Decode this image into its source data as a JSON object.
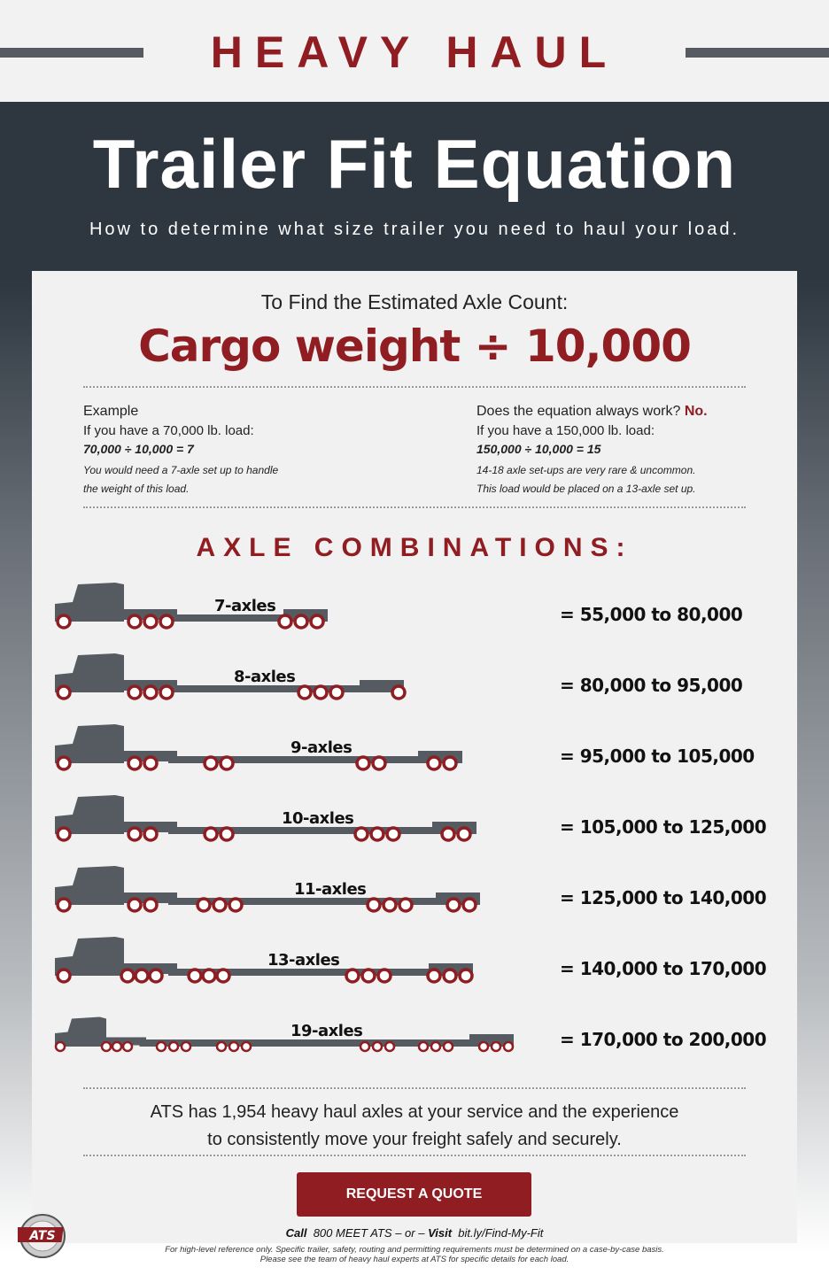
{
  "header": {
    "kicker": "HEAVY HAUL",
    "title": "Trailer Fit Equation",
    "subtitle": "How to determine what size trailer you need to haul your load."
  },
  "formula": {
    "intro": "To Find the Estimated Axle Count:",
    "equation": "Cargo weight ÷ 10,000"
  },
  "example": {
    "heading": "Example",
    "line1": "If you have a 70,000 lb. load:",
    "calc": "70,000 ÷ 10,000 = 7",
    "note1": "You would need a 7-axle set up to  handle",
    "note2": "the weight of this load."
  },
  "caveat": {
    "heading": "Does the equation always work?",
    "answer": "No.",
    "line1": "If you have a 150,000 lb. load:",
    "calc": "150,000 ÷ 10,000 = 15",
    "note1": "14-18 axle set-ups are very rare & uncommon.",
    "note2": "This load would be placed on a 13-axle set up."
  },
  "axle_heading": "AXLE COMBINATIONS:",
  "combinations": [
    {
      "label": "7-axles",
      "range": "= 55,000 to 80,000"
    },
    {
      "label": "8-axles",
      "range": "= 80,000 to 95,000"
    },
    {
      "label": "9-axles",
      "range": "= 95,000 to 105,000"
    },
    {
      "label": "10-axles",
      "range": "= 105,000 to 125,000"
    },
    {
      "label": "11-axles",
      "range": "= 125,000 to 140,000"
    },
    {
      "label": "13-axles",
      "range": "= 140,000 to 170,000"
    },
    {
      "label": "19-axles",
      "range": "= 170,000 to 200,000"
    }
  ],
  "footer": {
    "line1": "ATS has 1,954 heavy haul axles at your service and the experience",
    "line2": "to consistently move your freight safely and securely.",
    "cta": "REQUEST A QUOTE",
    "call_label": "Call",
    "phone": "800 MEET ATS",
    "or": "– or –",
    "visit_label": "Visit",
    "url": "bit.ly/Find-My-Fit",
    "disclaimer1": "For high-level reference only. Specific trailer, safety, routing and permitting requirements must be determined on a case-by-case basis.",
    "disclaimer2": "Please see the team of heavy haul experts at ATS for specific details for each load.",
    "logo_text": "ATS"
  },
  "colors": {
    "brand_red": "#8f1d22",
    "dark": "#2e3740",
    "truck_gray": "#555b61"
  }
}
